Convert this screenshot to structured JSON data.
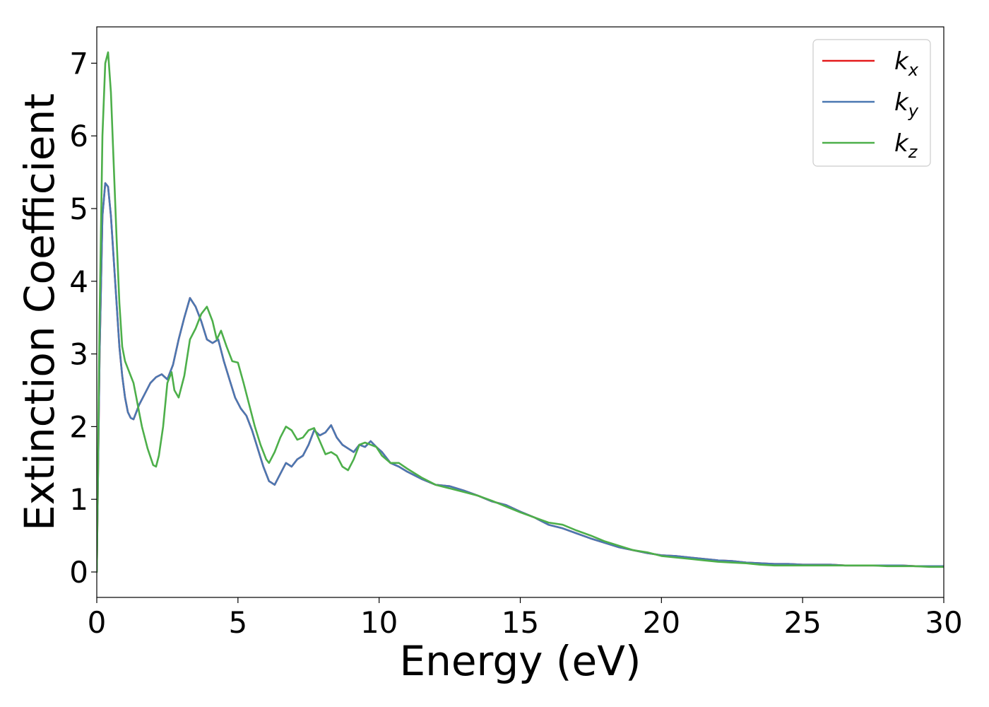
{
  "chart_data": {
    "type": "line",
    "xlabel": "Energy (eV)",
    "ylabel": "Extinction Coefficient",
    "xlim": [
      0,
      30
    ],
    "ylim": [
      -0.35,
      7.5
    ],
    "xticks": [
      0,
      5,
      10,
      15,
      20,
      25,
      30
    ],
    "yticks": [
      0,
      1,
      2,
      3,
      4,
      5,
      6,
      7
    ],
    "grid": false,
    "legend_position": "top-right",
    "series": [
      {
        "name": "k_x",
        "label_main": "k",
        "label_sub": "x",
        "color": "#e41a1c",
        "x": [
          0,
          0.1,
          0.2,
          0.3,
          0.4,
          0.5,
          0.6,
          0.7,
          0.8,
          0.9,
          1.0,
          1.1,
          1.2,
          1.3,
          1.4,
          1.5,
          1.7,
          1.9,
          2.1,
          2.3,
          2.5,
          2.7,
          2.9,
          3.1,
          3.3,
          3.5,
          3.7,
          3.9,
          4.1,
          4.3,
          4.5,
          4.7,
          4.9,
          5.1,
          5.3,
          5.5,
          5.7,
          5.9,
          6.1,
          6.3,
          6.5,
          6.7,
          6.9,
          7.1,
          7.3,
          7.5,
          7.7,
          7.9,
          8.1,
          8.3,
          8.5,
          8.7,
          8.9,
          9.1,
          9.3,
          9.5,
          9.7,
          9.9,
          10.1,
          10.4,
          10.7,
          11.0,
          11.5,
          12.0,
          12.5,
          13.0,
          13.5,
          14.0,
          14.5,
          15.0,
          15.5,
          16.0,
          16.5,
          17.0,
          17.5,
          18.0,
          18.5,
          19.0,
          19.5,
          20.0,
          20.5,
          21.0,
          21.5,
          22.0,
          22.5,
          23.0,
          23.5,
          24.0,
          24.5,
          25.0,
          25.5,
          26.0,
          26.5,
          27.0,
          27.5,
          28.0,
          28.5,
          29.0,
          29.5,
          30.0
        ],
        "y": [
          0.0,
          3.0,
          4.9,
          5.35,
          5.3,
          4.9,
          4.3,
          3.7,
          3.1,
          2.7,
          2.4,
          2.2,
          2.12,
          2.1,
          2.2,
          2.3,
          2.45,
          2.6,
          2.68,
          2.72,
          2.65,
          2.85,
          3.2,
          3.5,
          3.77,
          3.65,
          3.45,
          3.2,
          3.15,
          3.2,
          2.9,
          2.65,
          2.4,
          2.25,
          2.15,
          1.95,
          1.7,
          1.45,
          1.25,
          1.2,
          1.35,
          1.5,
          1.45,
          1.55,
          1.6,
          1.75,
          1.95,
          1.88,
          1.92,
          2.02,
          1.85,
          1.75,
          1.7,
          1.65,
          1.75,
          1.72,
          1.8,
          1.72,
          1.65,
          1.5,
          1.45,
          1.38,
          1.28,
          1.2,
          1.18,
          1.12,
          1.05,
          0.97,
          0.92,
          0.83,
          0.75,
          0.65,
          0.6,
          0.53,
          0.46,
          0.4,
          0.34,
          0.3,
          0.26,
          0.23,
          0.22,
          0.2,
          0.18,
          0.16,
          0.15,
          0.13,
          0.12,
          0.11,
          0.11,
          0.1,
          0.1,
          0.1,
          0.09,
          0.09,
          0.09,
          0.09,
          0.09,
          0.08,
          0.08,
          0.08
        ]
      },
      {
        "name": "k_y",
        "label_main": "k",
        "label_sub": "y",
        "color": "#4a78b2",
        "x": [
          0,
          0.1,
          0.2,
          0.3,
          0.4,
          0.5,
          0.6,
          0.7,
          0.8,
          0.9,
          1.0,
          1.1,
          1.2,
          1.3,
          1.4,
          1.5,
          1.7,
          1.9,
          2.1,
          2.3,
          2.5,
          2.7,
          2.9,
          3.1,
          3.3,
          3.5,
          3.7,
          3.9,
          4.1,
          4.3,
          4.5,
          4.7,
          4.9,
          5.1,
          5.3,
          5.5,
          5.7,
          5.9,
          6.1,
          6.3,
          6.5,
          6.7,
          6.9,
          7.1,
          7.3,
          7.5,
          7.7,
          7.9,
          8.1,
          8.3,
          8.5,
          8.7,
          8.9,
          9.1,
          9.3,
          9.5,
          9.7,
          9.9,
          10.1,
          10.4,
          10.7,
          11.0,
          11.5,
          12.0,
          12.5,
          13.0,
          13.5,
          14.0,
          14.5,
          15.0,
          15.5,
          16.0,
          16.5,
          17.0,
          17.5,
          18.0,
          18.5,
          19.0,
          19.5,
          20.0,
          20.5,
          21.0,
          21.5,
          22.0,
          22.5,
          23.0,
          23.5,
          24.0,
          24.5,
          25.0,
          25.5,
          26.0,
          26.5,
          27.0,
          27.5,
          28.0,
          28.5,
          29.0,
          29.5,
          30.0
        ],
        "y": [
          0.0,
          3.0,
          4.9,
          5.35,
          5.3,
          4.9,
          4.3,
          3.7,
          3.1,
          2.7,
          2.4,
          2.2,
          2.12,
          2.1,
          2.2,
          2.3,
          2.45,
          2.6,
          2.68,
          2.72,
          2.65,
          2.85,
          3.2,
          3.5,
          3.77,
          3.65,
          3.45,
          3.2,
          3.15,
          3.2,
          2.9,
          2.65,
          2.4,
          2.25,
          2.15,
          1.95,
          1.7,
          1.45,
          1.25,
          1.2,
          1.35,
          1.5,
          1.45,
          1.55,
          1.6,
          1.75,
          1.95,
          1.88,
          1.92,
          2.02,
          1.85,
          1.75,
          1.7,
          1.65,
          1.75,
          1.72,
          1.8,
          1.72,
          1.65,
          1.5,
          1.45,
          1.38,
          1.28,
          1.2,
          1.18,
          1.12,
          1.05,
          0.97,
          0.92,
          0.83,
          0.75,
          0.65,
          0.6,
          0.53,
          0.46,
          0.4,
          0.34,
          0.3,
          0.26,
          0.23,
          0.22,
          0.2,
          0.18,
          0.16,
          0.15,
          0.13,
          0.12,
          0.11,
          0.11,
          0.1,
          0.1,
          0.1,
          0.09,
          0.09,
          0.09,
          0.09,
          0.09,
          0.08,
          0.08,
          0.08
        ]
      },
      {
        "name": "k_z",
        "label_main": "k",
        "label_sub": "z",
        "color": "#4daf4a",
        "x": [
          0,
          0.1,
          0.2,
          0.3,
          0.4,
          0.5,
          0.6,
          0.7,
          0.8,
          0.9,
          1.0,
          1.1,
          1.2,
          1.3,
          1.4,
          1.5,
          1.6,
          1.8,
          2.0,
          2.1,
          2.2,
          2.35,
          2.5,
          2.65,
          2.75,
          2.9,
          3.1,
          3.3,
          3.5,
          3.7,
          3.9,
          4.1,
          4.25,
          4.4,
          4.6,
          4.8,
          5.0,
          5.2,
          5.4,
          5.6,
          5.8,
          6.0,
          6.1,
          6.3,
          6.5,
          6.7,
          6.9,
          7.1,
          7.3,
          7.5,
          7.7,
          7.9,
          8.1,
          8.3,
          8.5,
          8.7,
          8.9,
          9.1,
          9.3,
          9.5,
          9.7,
          9.9,
          10.1,
          10.4,
          10.7,
          11.0,
          11.5,
          12.0,
          12.5,
          13.0,
          13.5,
          14.0,
          14.5,
          15.0,
          15.5,
          16.0,
          16.5,
          17.0,
          17.5,
          18.0,
          18.5,
          19.0,
          19.5,
          20.0,
          20.5,
          21.0,
          21.5,
          22.0,
          22.5,
          23.0,
          23.5,
          24.0,
          24.5,
          25.0,
          25.5,
          26.0,
          26.5,
          27.0,
          27.5,
          28.0,
          28.5,
          29.0,
          29.5,
          30.0
        ],
        "y": [
          0.0,
          3.5,
          6.0,
          7.0,
          7.15,
          6.6,
          5.6,
          4.6,
          3.7,
          3.1,
          2.9,
          2.8,
          2.7,
          2.6,
          2.4,
          2.2,
          2.0,
          1.7,
          1.47,
          1.45,
          1.6,
          2.0,
          2.6,
          2.75,
          2.5,
          2.4,
          2.7,
          3.2,
          3.35,
          3.55,
          3.65,
          3.45,
          3.2,
          3.32,
          3.1,
          2.9,
          2.88,
          2.6,
          2.3,
          2.0,
          1.75,
          1.55,
          1.5,
          1.65,
          1.85,
          2.0,
          1.95,
          1.82,
          1.85,
          1.95,
          1.98,
          1.8,
          1.62,
          1.65,
          1.6,
          1.45,
          1.4,
          1.55,
          1.75,
          1.78,
          1.75,
          1.72,
          1.6,
          1.5,
          1.5,
          1.42,
          1.3,
          1.2,
          1.15,
          1.1,
          1.05,
          0.98,
          0.9,
          0.82,
          0.75,
          0.68,
          0.65,
          0.57,
          0.5,
          0.42,
          0.36,
          0.3,
          0.27,
          0.22,
          0.2,
          0.18,
          0.16,
          0.14,
          0.13,
          0.12,
          0.1,
          0.09,
          0.09,
          0.09,
          0.09,
          0.09,
          0.09,
          0.09,
          0.09,
          0.08,
          0.08,
          0.08,
          0.07,
          0.07
        ]
      }
    ]
  }
}
